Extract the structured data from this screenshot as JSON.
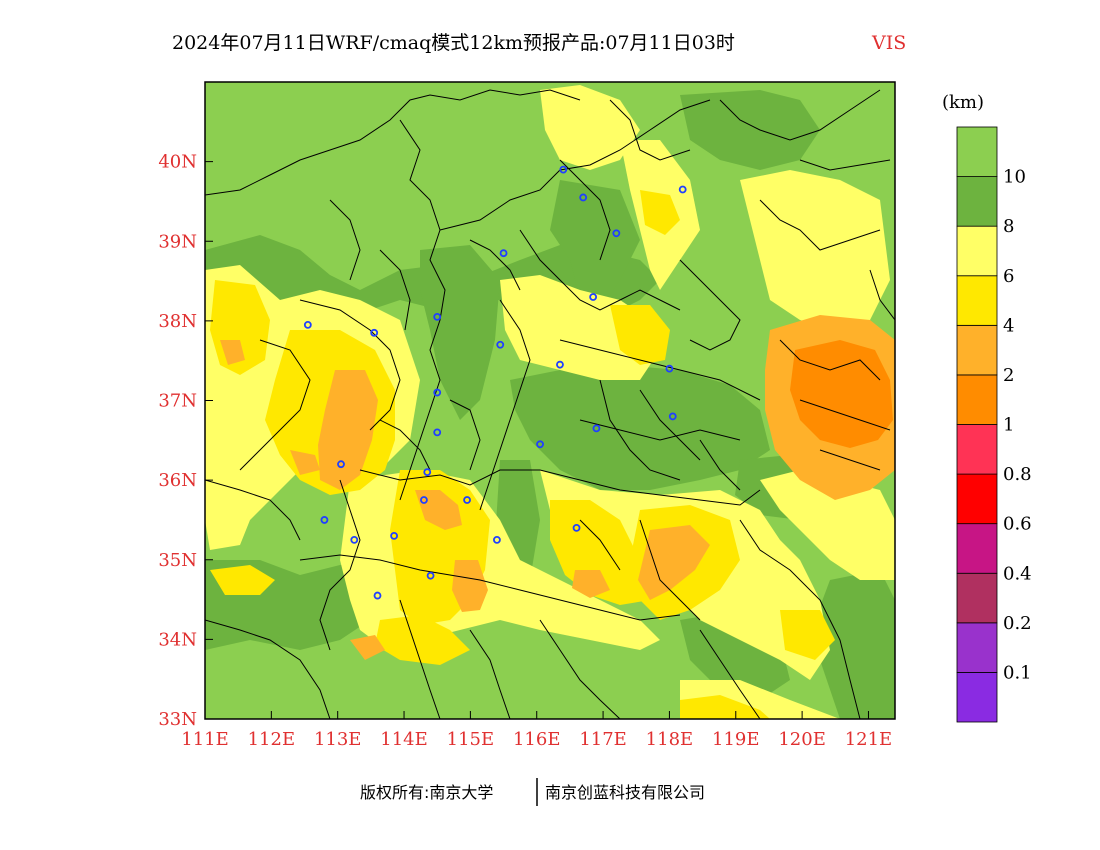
{
  "title": {
    "main": "2024年07月11日WRF/cmaq模式12km预报产品:07月11日03时",
    "variable": "VIS"
  },
  "map": {
    "lon_range": [
      111,
      121.4
    ],
    "lat_range": [
      33,
      41
    ],
    "x_ticks": [
      "111E",
      "112E",
      "113E",
      "114E",
      "115E",
      "116E",
      "117E",
      "118E",
      "119E",
      "120E",
      "121E"
    ],
    "x_tick_values": [
      111,
      112,
      113,
      114,
      115,
      116,
      117,
      118,
      119,
      120,
      121
    ],
    "y_ticks": [
      "40N",
      "39N",
      "38N",
      "37N",
      "36N",
      "35N",
      "34N",
      "33N"
    ],
    "y_tick_values": [
      40,
      39,
      38,
      37,
      36,
      35,
      34,
      33
    ],
    "station_marker_color": "#2040ff",
    "stations": [
      [
        116.4,
        39.9
      ],
      [
        116.7,
        39.55
      ],
      [
        117.2,
        39.1
      ],
      [
        118.2,
        39.65
      ],
      [
        115.5,
        38.85
      ],
      [
        116.85,
        38.3
      ],
      [
        112.55,
        37.95
      ],
      [
        113.55,
        37.85
      ],
      [
        114.5,
        38.05
      ],
      [
        115.45,
        37.7
      ],
      [
        116.35,
        37.45
      ],
      [
        118.0,
        37.4
      ],
      [
        114.5,
        37.1
      ],
      [
        118.05,
        36.8
      ],
      [
        116.05,
        36.45
      ],
      [
        116.9,
        36.65
      ],
      [
        114.5,
        36.6
      ],
      [
        113.05,
        36.2
      ],
      [
        114.35,
        36.1
      ],
      [
        114.3,
        35.75
      ],
      [
        114.95,
        35.75
      ],
      [
        112.8,
        35.5
      ],
      [
        113.25,
        35.25
      ],
      [
        113.85,
        35.3
      ],
      [
        115.4,
        35.25
      ],
      [
        116.6,
        35.4
      ],
      [
        114.4,
        34.8
      ],
      [
        113.6,
        34.55
      ]
    ]
  },
  "colorbar": {
    "unit": "(km)",
    "colors": [
      "#8a2be2",
      "#9932cc",
      "#b03060",
      "#c71585",
      "#ff0000",
      "#ff3355",
      "#ff8c00",
      "#ffb12a",
      "#ffe800",
      "#ffff66",
      "#6db33f",
      "#8ccf50"
    ],
    "labels": [
      "0.1",
      "0.2",
      "0.4",
      "0.6",
      "0.8",
      "1",
      "2",
      "4",
      "6",
      "8",
      "10"
    ]
  },
  "footer": {
    "left": "版权所有:南京大学",
    "right": "南京创蓝科技有限公司"
  }
}
